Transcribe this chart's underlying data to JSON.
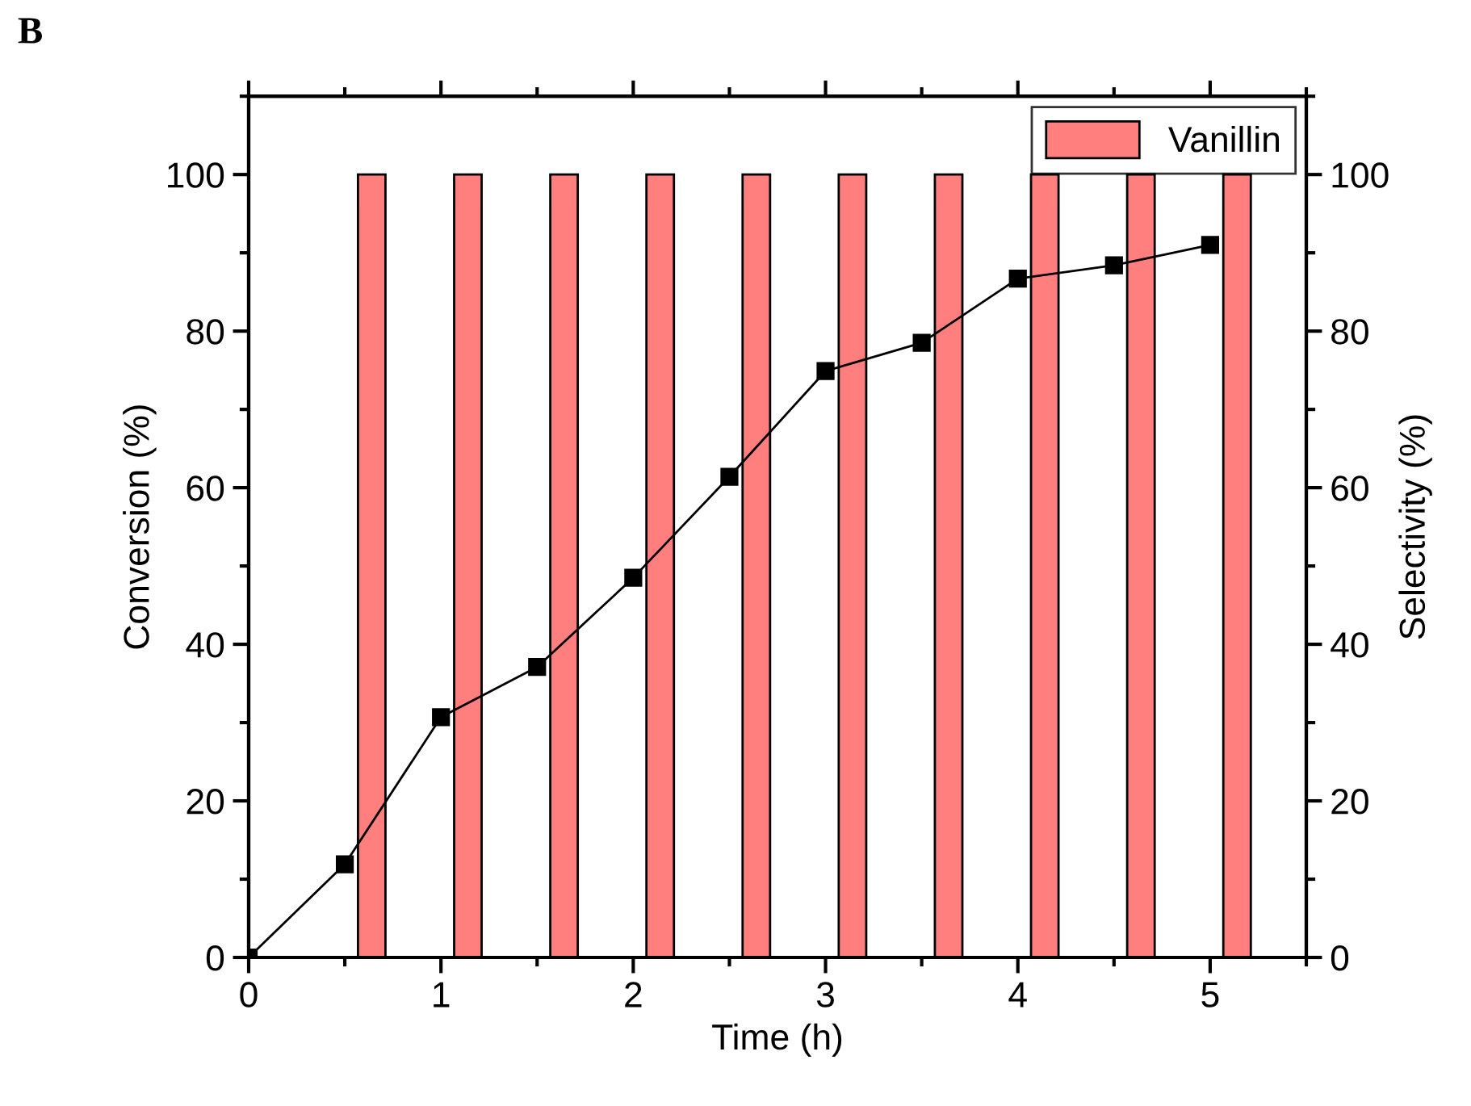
{
  "chart_data": {
    "type": "line",
    "xlabel": "Time (h)",
    "ylabel": "Conversion (%)",
    "y2label": "Selectivity (%)",
    "annotations": [
      "B"
    ],
    "xlim": [
      0,
      5.5
    ],
    "xticks": [
      0,
      1,
      2,
      3,
      4,
      5
    ],
    "ylim": [
      0,
      110
    ],
    "yticks": [
      0,
      20,
      40,
      60,
      80,
      100
    ],
    "y2lim": [
      0,
      110
    ],
    "y2ticks": [
      0,
      20,
      40,
      60,
      80,
      100
    ],
    "legend": "top right",
    "grid": false,
    "series": [
      {
        "type": "bar",
        "name": "Vanillin",
        "axis": "y2",
        "color": "#ff7f7f",
        "x": [
          0.64,
          1.14,
          1.64,
          2.14,
          2.64,
          3.14,
          3.64,
          4.14,
          4.64,
          5.14
        ],
        "values": [
          100,
          100,
          100,
          100,
          100,
          100,
          100,
          100,
          100,
          100
        ]
      },
      {
        "color": "#000000",
        "marker": "square",
        "line_style": "solid",
        "x": [
          0,
          0.5,
          1,
          1.5,
          2,
          2.5,
          3,
          3.5,
          4,
          4.5,
          5
        ],
        "values": [
          0,
          11.9,
          30.7,
          37.1,
          48.5,
          61.4,
          74.9,
          78.5,
          86.7,
          88.4,
          91.0
        ]
      }
    ]
  }
}
